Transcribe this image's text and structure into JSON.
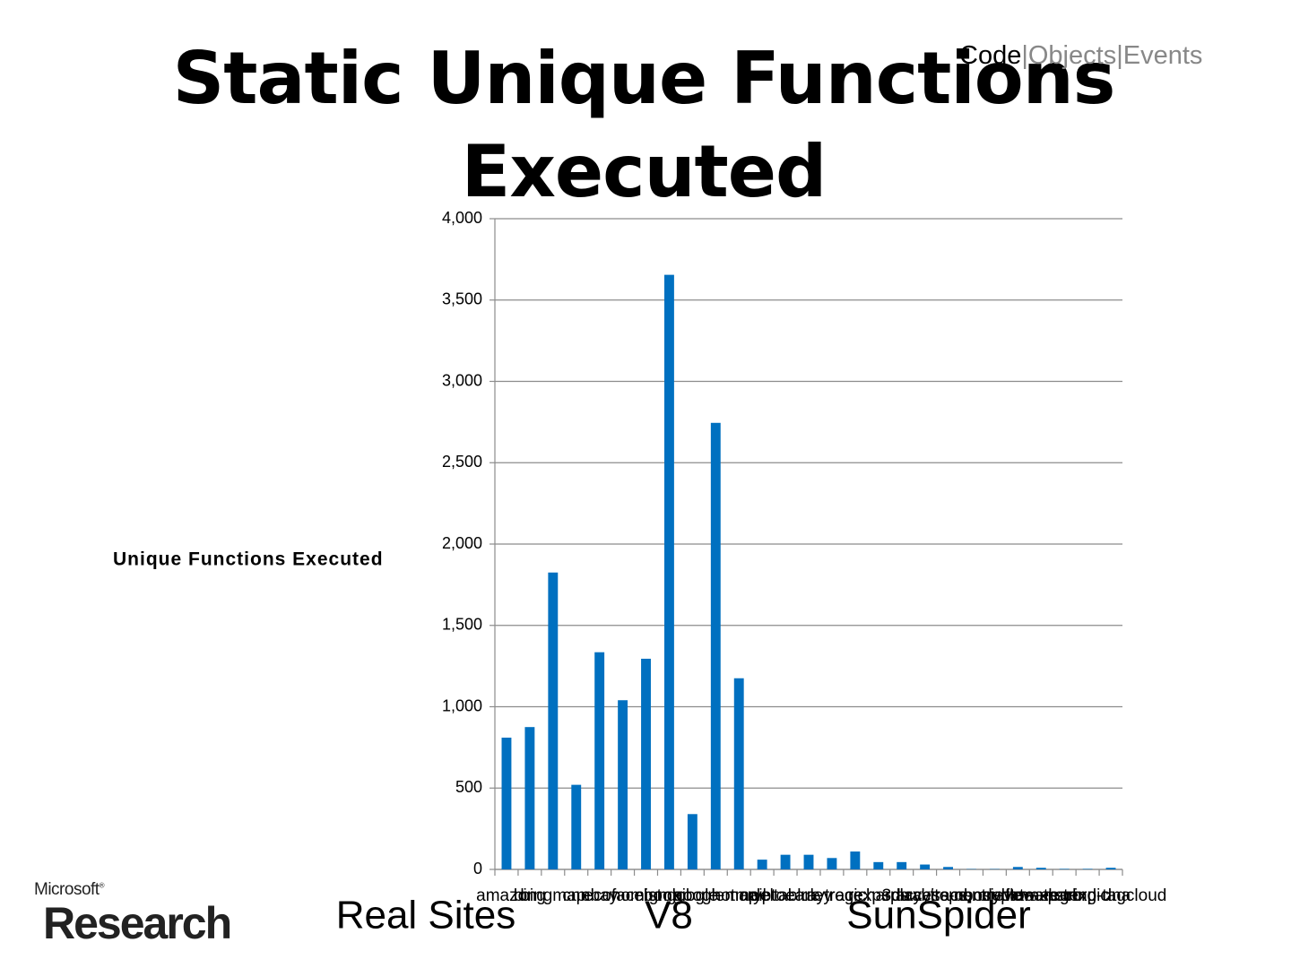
{
  "header": {
    "title": "Static Unique Functions Executed",
    "nav": {
      "items": [
        "Code",
        "Objects",
        "Events"
      ],
      "separator": "|"
    }
  },
  "chart_data": {
    "type": "bar",
    "y_label": "Unique Functions Executed",
    "categories": [
      "amazon",
      "bing",
      "bingmap",
      "cnn",
      "ebay",
      "economist",
      "facebook",
      "gmail",
      "google",
      "googlemap",
      "hotmail",
      "crypto",
      "deltablue",
      "earley",
      "raytrace",
      "regexp",
      "richards",
      "splay",
      "3d-raytrace",
      "access-nbody",
      "bitops-nsieve",
      "controlflow",
      "crypto-aes",
      "date-xparb",
      "math-cordic",
      "regexp-dna",
      "string-tagcloud"
    ],
    "values": [
      810,
      875,
      1825,
      520,
      1335,
      1040,
      1295,
      3655,
      340,
      2745,
      1175,
      60,
      90,
      90,
      70,
      110,
      45,
      45,
      30,
      15,
      2,
      2,
      15,
      10,
      3,
      3,
      10
    ],
    "color": "#0070c0",
    "ylim": [
      0,
      4000
    ],
    "yticks": [
      0,
      500,
      {
        "value": 1000,
        "label": "1,000"
      },
      {
        "value": 1500,
        "label": "1,500"
      },
      {
        "value": 2000,
        "label": "2,000"
      },
      {
        "value": 2500,
        "label": "2,500"
      },
      {
        "value": 3000,
        "label": "3,000"
      },
      {
        "value": 3500,
        "label": "3,500"
      },
      {
        "value": 4000,
        "label": "4,000"
      }
    ],
    "grid": true,
    "groups": [
      "Real Sites",
      "V8",
      "SunSpider"
    ]
  },
  "logo": {
    "company": "Microsoft",
    "mark": "®",
    "division": "Research"
  }
}
